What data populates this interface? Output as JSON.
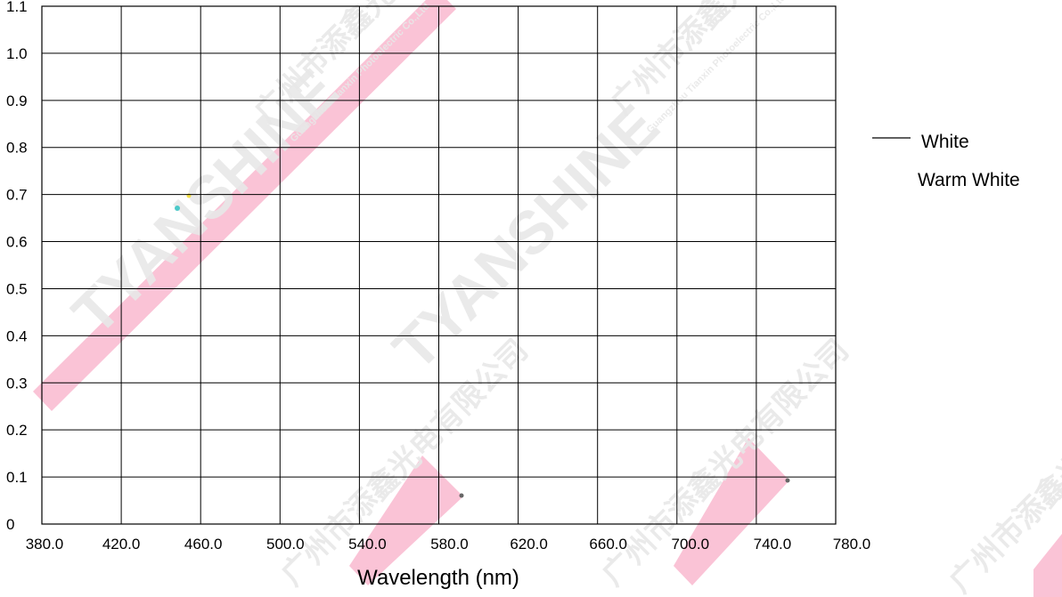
{
  "chart_data": {
    "type": "line",
    "title": "",
    "xlabel": "Wavelength (nm)",
    "ylabel": "",
    "xlim": [
      380,
      780
    ],
    "ylim": [
      0,
      1.1
    ],
    "x_ticks": [
      380,
      420,
      460,
      500,
      540,
      580,
      620,
      660,
      700,
      740,
      780
    ],
    "x_tick_labels": [
      "380.0",
      "420.0",
      "460.0",
      "500.0",
      "540.0",
      "580.0",
      "620.0",
      "660.0",
      "700.0",
      "740.0",
      "780.0"
    ],
    "y_ticks": [
      0,
      0.1,
      0.2,
      0.3,
      0.4,
      0.5,
      0.6,
      0.7,
      0.8,
      0.9,
      1.0,
      1.1
    ],
    "y_tick_labels": [
      "0",
      "0.1",
      "0.2",
      "0.3",
      "0.4",
      "0.5",
      "0.6",
      "0.7",
      "0.8",
      "0.9",
      "1.0",
      "1.1"
    ],
    "grid": true,
    "legend_position": "right",
    "series": [
      {
        "name": "White",
        "color": "#000000",
        "x": [],
        "y": []
      },
      {
        "name": "Warm White",
        "color": "#000000",
        "x": [],
        "y": []
      }
    ]
  },
  "watermark": {
    "brand": "TYANSHINE",
    "company_en": "Guangzhou Tianxin Photoelectric Co.,Ltd",
    "company_cn": "广州市添鑫光电有限公司",
    "band_color": "#f9b8cf",
    "text_color": "#e8e8e8"
  }
}
